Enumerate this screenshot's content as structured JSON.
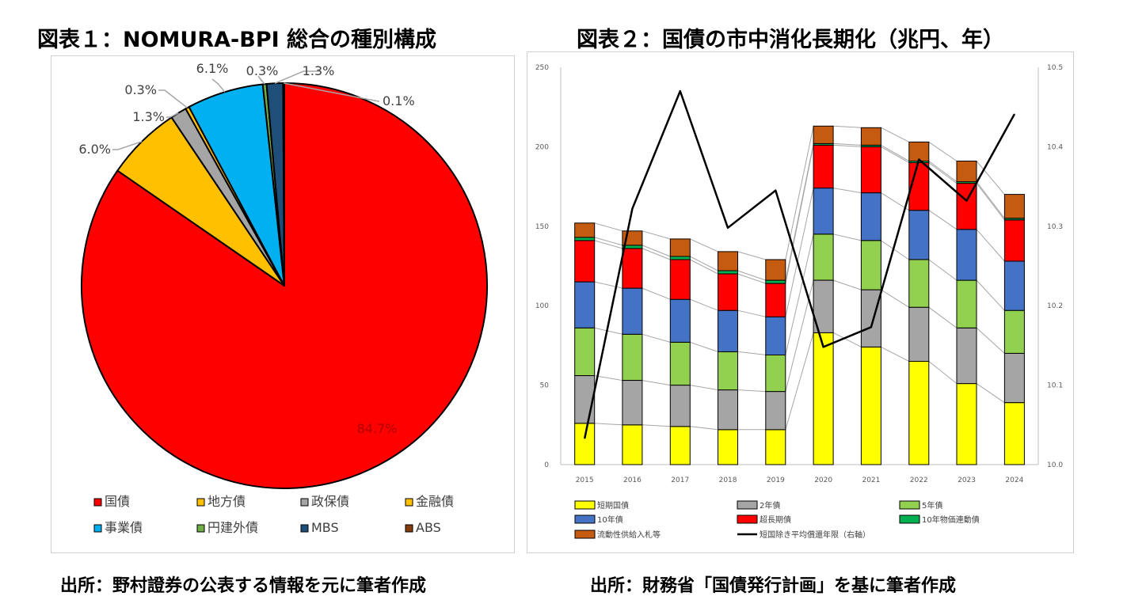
{
  "figure1": {
    "title": "図表１：NOMURA-BPI 総合の種別構成",
    "source": "出所：野村證券の公表する情報を元に筆者作成",
    "chart_data": {
      "type": "pie",
      "start": "top",
      "direction": "clockwise",
      "slices": [
        {
          "name": "国債",
          "value": 84.7,
          "label": "84.7%",
          "color": "#ff0000"
        },
        {
          "name": "地方債",
          "value": 6.0,
          "label": "6.0%",
          "color": "#ffc000"
        },
        {
          "name": "政保債",
          "value": 1.3,
          "label": "1.3%",
          "color": "#a5a5a5"
        },
        {
          "name": "金融債",
          "value": 0.3,
          "label": "0.3%",
          "color": "#ffc000"
        },
        {
          "name": "事業債",
          "value": 6.1,
          "label": "6.1%",
          "color": "#00b0f0"
        },
        {
          "name": "円建外債",
          "value": 0.3,
          "label": "0.3%",
          "color": "#70ad47"
        },
        {
          "name": "MBS",
          "value": 1.3,
          "label": "1.3%",
          "color": "#1f4e79"
        },
        {
          "name": "ABS",
          "value": 0.1,
          "label": "0.1%",
          "color": "#843c0c"
        }
      ],
      "legend": [
        {
          "name": "国債",
          "color": "#ff0000"
        },
        {
          "name": "地方債",
          "color": "#ffc000"
        },
        {
          "name": "政保債",
          "color": "#a5a5a5"
        },
        {
          "name": "金融債",
          "color": "#ffc000"
        },
        {
          "name": "事業債",
          "color": "#00b0f0"
        },
        {
          "name": "円建外債",
          "color": "#70ad47"
        },
        {
          "name": "MBS",
          "color": "#1f4e79"
        },
        {
          "name": "ABS",
          "color": "#843c0c"
        }
      ]
    }
  },
  "figure2": {
    "title": "図表２：国債の市中消化長期化（兆円、年）",
    "source": "出所：財務省「国債発行計画」を基に筆者作成",
    "chart_data": {
      "type": "bar",
      "stacked": true,
      "categories": [
        "2015",
        "2016",
        "2017",
        "2018",
        "2019",
        "2020",
        "2021",
        "2022",
        "2023",
        "2024"
      ],
      "ylim": [
        0,
        250
      ],
      "yticks": [
        0,
        50,
        100,
        150,
        200,
        250
      ],
      "y2lim": [
        10.0,
        10.5
      ],
      "y2ticks": [
        "10.0",
        "10.1",
        "10.2",
        "10.3",
        "10.4",
        "10.5"
      ],
      "series": [
        {
          "name": "短期国債",
          "color": "#ffff00",
          "values": [
            26,
            25,
            24,
            22,
            22,
            83,
            74,
            65,
            51,
            39
          ]
        },
        {
          "name": "2年債",
          "color": "#a5a5a5",
          "values": [
            30,
            28,
            26,
            25,
            24,
            33,
            36,
            34,
            35,
            31
          ]
        },
        {
          "name": "5年債",
          "color": "#92d050",
          "values": [
            30,
            29,
            27,
            24,
            23,
            29,
            31,
            30,
            30,
            27
          ]
        },
        {
          "name": "10年債",
          "color": "#4472c4",
          "values": [
            29,
            29,
            27,
            26,
            24,
            29,
            30,
            31,
            32,
            31
          ]
        },
        {
          "name": "超長期債",
          "color": "#ff0000",
          "values": [
            26,
            25,
            25,
            23,
            21,
            27,
            29,
            30,
            29,
            26
          ]
        },
        {
          "name": "10年物価連動債",
          "color": "#00b050",
          "values": [
            2,
            2,
            2,
            2,
            2,
            1,
            1,
            1,
            1,
            1
          ]
        },
        {
          "name": "流動性供給入札等",
          "color": "#c55a11",
          "values": [
            9,
            9,
            11,
            12,
            13,
            11,
            11,
            12,
            13,
            15
          ]
        }
      ],
      "line": {
        "name": "短国除き平均償還年限（右軸）",
        "axis": "right",
        "color": "#000000",
        "values": [
          10.033,
          10.322,
          10.47,
          10.298,
          10.345,
          10.148,
          10.173,
          10.384,
          10.332,
          10.441
        ]
      },
      "legend": [
        {
          "name": "短期国債",
          "color": "#ffff00",
          "kind": "box"
        },
        {
          "name": "2年債",
          "color": "#a5a5a5",
          "kind": "box"
        },
        {
          "name": "5年債",
          "color": "#92d050",
          "kind": "box"
        },
        {
          "name": "10年債",
          "color": "#4472c4",
          "kind": "box"
        },
        {
          "name": "超長期債",
          "color": "#ff0000",
          "kind": "box"
        },
        {
          "name": "10年物価連動債",
          "color": "#00b050",
          "kind": "box"
        },
        {
          "name": "流動性供給入札等",
          "color": "#c55a11",
          "kind": "box"
        },
        {
          "name": "短国除き平均償還年限（右軸）",
          "color": "#000000",
          "kind": "line"
        }
      ]
    }
  }
}
